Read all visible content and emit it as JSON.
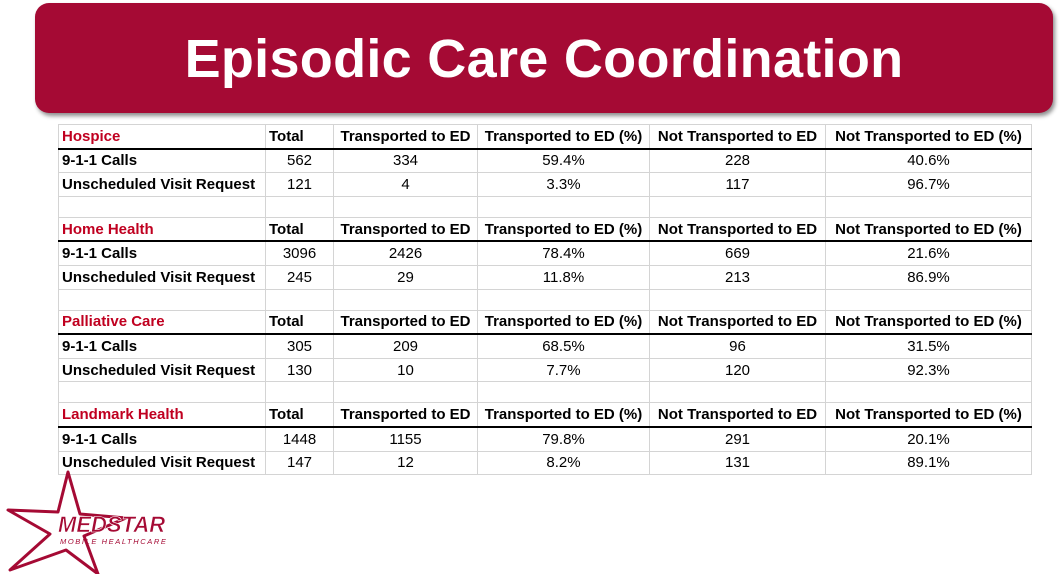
{
  "title": "Episodic Care Coordination",
  "columns": [
    "Total",
    "Transported to ED",
    "Transported to ED (%)",
    "Not Transported to ED",
    "Not Transported to ED (%)"
  ],
  "sections": [
    {
      "name": "Hospice",
      "rows": [
        {
          "label": "9-1-1 Calls",
          "total": "562",
          "transported": "334",
          "transported_pct": "59.4%",
          "not_transported": "228",
          "not_transported_pct": "40.6%"
        },
        {
          "label": "Unscheduled Visit Request",
          "total": "121",
          "transported": "4",
          "transported_pct": "3.3%",
          "not_transported": "117",
          "not_transported_pct": "96.7%"
        }
      ]
    },
    {
      "name": "Home Health",
      "rows": [
        {
          "label": "9-1-1 Calls",
          "total": "3096",
          "transported": "2426",
          "transported_pct": "78.4%",
          "not_transported": "669",
          "not_transported_pct": "21.6%"
        },
        {
          "label": "Unscheduled Visit Request",
          "total": "245",
          "transported": "29",
          "transported_pct": "11.8%",
          "not_transported": "213",
          "not_transported_pct": "86.9%"
        }
      ]
    },
    {
      "name": "Palliative Care",
      "rows": [
        {
          "label": "9-1-1 Calls",
          "total": "305",
          "transported": "209",
          "transported_pct": "68.5%",
          "not_transported": "96",
          "not_transported_pct": "31.5%"
        },
        {
          "label": "Unscheduled Visit Request",
          "total": "130",
          "transported": "10",
          "transported_pct": "7.7%",
          "not_transported": "120",
          "not_transported_pct": "92.3%"
        }
      ]
    },
    {
      "name": "Landmark Health",
      "rows": [
        {
          "label": "9-1-1 Calls",
          "total": "1448",
          "transported": "1155",
          "transported_pct": "79.8%",
          "not_transported": "291",
          "not_transported_pct": "20.1%"
        },
        {
          "label": "Unscheduled Visit Request",
          "total": "147",
          "transported": "12",
          "transported_pct": "8.2%",
          "not_transported": "131",
          "not_transported_pct": "89.1%"
        }
      ]
    }
  ],
  "logo": {
    "wordmark": "MEDSTAR",
    "tagline": "MOBILE HEALTHCARE",
    "brand_color": "#a50a34"
  },
  "colors": {
    "banner": "#a50a34",
    "section_heading": "#c00020"
  }
}
